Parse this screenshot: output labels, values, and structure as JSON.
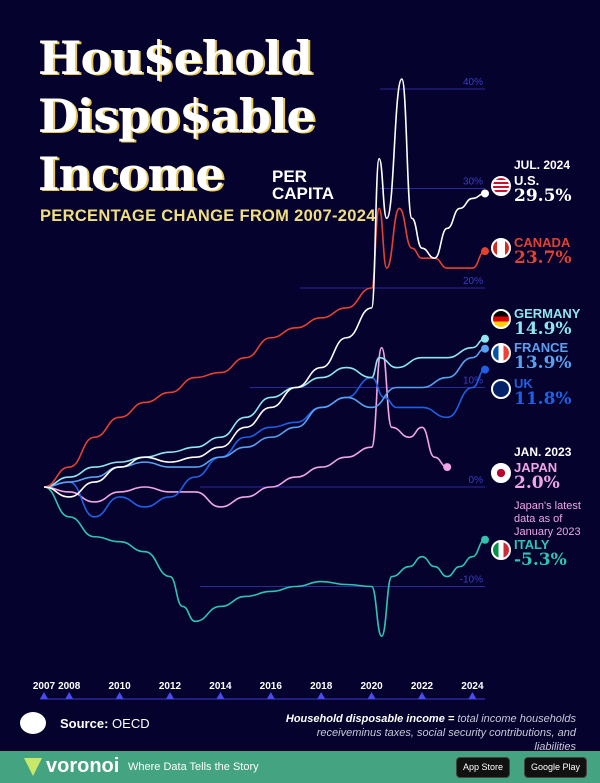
{
  "title": {
    "line1": "Hou$ehold",
    "line2": "Dispo$able",
    "line3": "Income",
    "per_capita": "PER CAPITA",
    "subtitle": "PERCENTAGE CHANGE FROM 2007-2024"
  },
  "chart_data": {
    "type": "line",
    "title": "Household Disposable Income Per Capita",
    "subtitle": "Percentage change from 2007-2024",
    "x_ticks": [
      "2007",
      "2008",
      "2010",
      "2012",
      "2014",
      "2016",
      "2018",
      "2020",
      "2022",
      "2024"
    ],
    "y_ticks": [
      "40%",
      "30%",
      "20%",
      "10%",
      "0%",
      "-10%"
    ],
    "xlim": [
      2007,
      2024.5
    ],
    "ylim": [
      -15,
      41
    ],
    "series": [
      {
        "name": "U.S.",
        "color": "#ffffff",
        "final": "29.5%",
        "date": "JUL. 2024",
        "x": [
          2007,
          2008,
          2009,
          2010,
          2011,
          2012,
          2013,
          2014,
          2015,
          2016,
          2017,
          2018,
          2019,
          2020,
          2020.3,
          2020.6,
          2021.2,
          2021.6,
          2022,
          2022.5,
          2023,
          2023.5,
          2024,
          2024.5
        ],
        "y": [
          0,
          -1,
          0.5,
          2,
          3,
          2.5,
          3,
          4,
          6,
          8,
          10,
          12,
          15,
          18,
          33,
          27,
          41,
          27,
          24,
          23,
          26,
          28,
          29,
          29.5
        ]
      },
      {
        "name": "CANADA",
        "color": "#e5412f",
        "final": "23.7%",
        "x": [
          2007,
          2008,
          2009,
          2010,
          2011,
          2012,
          2013,
          2014,
          2015,
          2016,
          2017,
          2018,
          2019,
          2020,
          2020.3,
          2020.6,
          2021.1,
          2021.6,
          2022,
          2022.5,
          2023,
          2023.5,
          2024,
          2024.5
        ],
        "y": [
          0,
          2,
          5,
          7,
          8.5,
          9.5,
          11,
          11.5,
          13,
          15,
          16,
          17,
          18,
          20,
          28,
          22,
          28,
          24,
          23,
          23,
          22,
          22,
          22,
          23.7
        ]
      },
      {
        "name": "GERMANY",
        "color": "#8fe6ef",
        "final": "14.9%",
        "x": [
          2007,
          2008,
          2009,
          2010,
          2011,
          2012,
          2013,
          2014,
          2015,
          2016,
          2017,
          2018,
          2019,
          2020,
          2020.3,
          2021,
          2022,
          2023,
          2024,
          2024.5
        ],
        "y": [
          0,
          1,
          2,
          2.5,
          3,
          3.5,
          4,
          5,
          7,
          9,
          10,
          11,
          12,
          11,
          13,
          12,
          13,
          13,
          14,
          14.9
        ]
      },
      {
        "name": "FRANCE",
        "color": "#5aa0f0",
        "final": "13.9%",
        "x": [
          2007,
          2008,
          2009,
          2010,
          2011,
          2012,
          2013,
          2014,
          2015,
          2016,
          2017,
          2018,
          2019,
          2020,
          2021,
          2022,
          2023,
          2024,
          2024.5
        ],
        "y": [
          0,
          0.5,
          1,
          2,
          2.5,
          2,
          2,
          3,
          4,
          5,
          6,
          8,
          9,
          8,
          10,
          10,
          11,
          13,
          13.9
        ]
      },
      {
        "name": "UK",
        "color": "#1f5fe6",
        "final": "11.8%",
        "x": [
          2007,
          2008,
          2009,
          2010,
          2011,
          2012,
          2013,
          2014,
          2015,
          2016,
          2017,
          2018,
          2019,
          2020,
          2020.5,
          2021,
          2022,
          2023,
          2024,
          2024.5
        ],
        "y": [
          0,
          0.5,
          -3,
          -1,
          -2,
          -1,
          1,
          3,
          5,
          6,
          6.5,
          8,
          9,
          11,
          9,
          8,
          8,
          7,
          10,
          11.8
        ]
      },
      {
        "name": "JAPAN",
        "color": "#f0a5e6",
        "final": "2.0%",
        "date": "JAN. 2023",
        "x": [
          2007,
          2008,
          2009,
          2010,
          2011,
          2012,
          2013,
          2014,
          2015,
          2016,
          2017,
          2018,
          2019,
          2020,
          2020.4,
          2020.8,
          2021.5,
          2022,
          2022.5,
          2023
        ],
        "y": [
          0,
          -0.5,
          -1.5,
          -0.5,
          0,
          -0.5,
          -0.5,
          -2,
          -1,
          0,
          1,
          2,
          3,
          4,
          14,
          6,
          5,
          6,
          3,
          2
        ]
      },
      {
        "name": "ITALY",
        "color": "#2fc4b2",
        "final": "-5.3%",
        "x": [
          2007,
          2008,
          2009,
          2010,
          2011,
          2012,
          2012.5,
          2013,
          2014,
          2015,
          2016,
          2017,
          2018,
          2019,
          2020,
          2020.4,
          2020.8,
          2021.5,
          2022,
          2022.5,
          2023,
          2023.5,
          2024,
          2024.5
        ],
        "y": [
          0,
          -3,
          -5,
          -5.5,
          -6.5,
          -9,
          -12,
          -13.5,
          -12,
          -11,
          -10.5,
          -10,
          -9.5,
          -9.8,
          -10,
          -15,
          -9,
          -8,
          -7,
          -8,
          -9,
          -8,
          -7,
          -5.3
        ]
      }
    ]
  },
  "labels": {
    "japan_note": "Japan's latest data as of January 2023"
  },
  "footer": {
    "source_label": "Source:",
    "source": "OECD",
    "definition_bold": "Household disposable income =",
    "definition": "total income households receiveminus taxes, social security contributions, and liabilities",
    "brand": "voronoi",
    "tagline": "Where Data Tells the Story",
    "app_store": "App Store",
    "google_play": "Google Play"
  }
}
